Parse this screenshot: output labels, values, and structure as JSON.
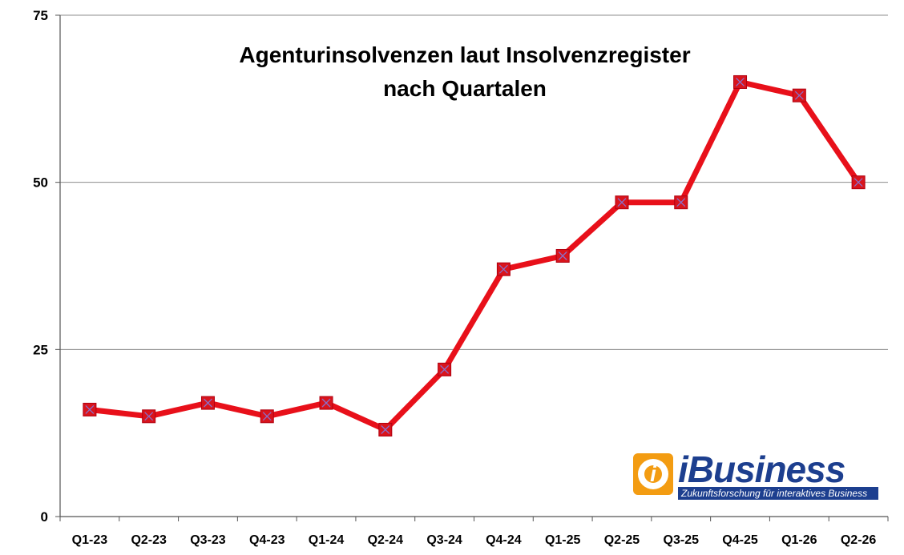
{
  "chart_data": {
    "type": "line",
    "title": "Agenturinsolvenzen laut Insolvenzregister",
    "subtitle": "nach Quartalen",
    "categories": [
      "Q1-23",
      "Q2-23",
      "Q3-23",
      "Q4-23",
      "Q1-24",
      "Q2-24",
      "Q3-24",
      "Q4-24",
      "Q1-25",
      "Q2-25",
      "Q3-25",
      "Q4-25",
      "Q1-26",
      "Q2-26"
    ],
    "values": [
      16,
      15,
      17,
      15,
      17,
      13,
      22,
      37,
      39,
      47,
      47,
      65,
      63,
      50
    ],
    "ylim": [
      0,
      75
    ],
    "yticks": [
      0,
      25,
      50,
      75
    ],
    "grid": true,
    "xlabel": "",
    "ylabel": "",
    "line_color": "#e8101a",
    "marker_color": "#d9141c",
    "marker_cross_color": "#8a6fc9"
  },
  "logo": {
    "name": "iBusiness",
    "icon": "at-sign-logo-icon",
    "tagline": "Zukunftsforschung für interaktives Business",
    "brand_orange": "#f39c12",
    "brand_blue": "#1d3f8f"
  }
}
